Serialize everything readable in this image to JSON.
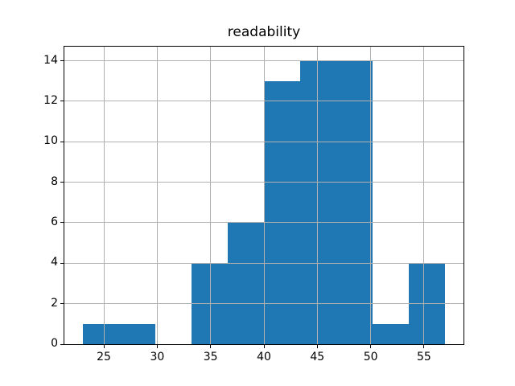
{
  "colors": {
    "bar": "#1f77b4",
    "grid": "#b0b0b0",
    "axis": "#000000",
    "background": "#ffffff",
    "text": "#000000"
  },
  "chart_data": {
    "type": "bar",
    "subtype": "histogram",
    "title": "readability",
    "xlabel": "",
    "ylabel": "",
    "bin_edges": [
      23.0,
      26.4,
      29.8,
      33.2,
      36.6,
      40.0,
      43.4,
      46.8,
      50.2,
      53.6,
      57.0
    ],
    "counts": [
      1,
      1,
      0,
      4,
      6,
      13,
      14,
      14,
      1,
      4
    ],
    "xticks": [
      25,
      30,
      35,
      40,
      45,
      50,
      55
    ],
    "yticks": [
      0,
      2,
      4,
      6,
      8,
      10,
      12,
      14
    ],
    "xlim": [
      21.3,
      58.7
    ],
    "ylim": [
      0,
      14.7
    ],
    "grid": true,
    "grid_above_bars": true,
    "legend": null
  }
}
